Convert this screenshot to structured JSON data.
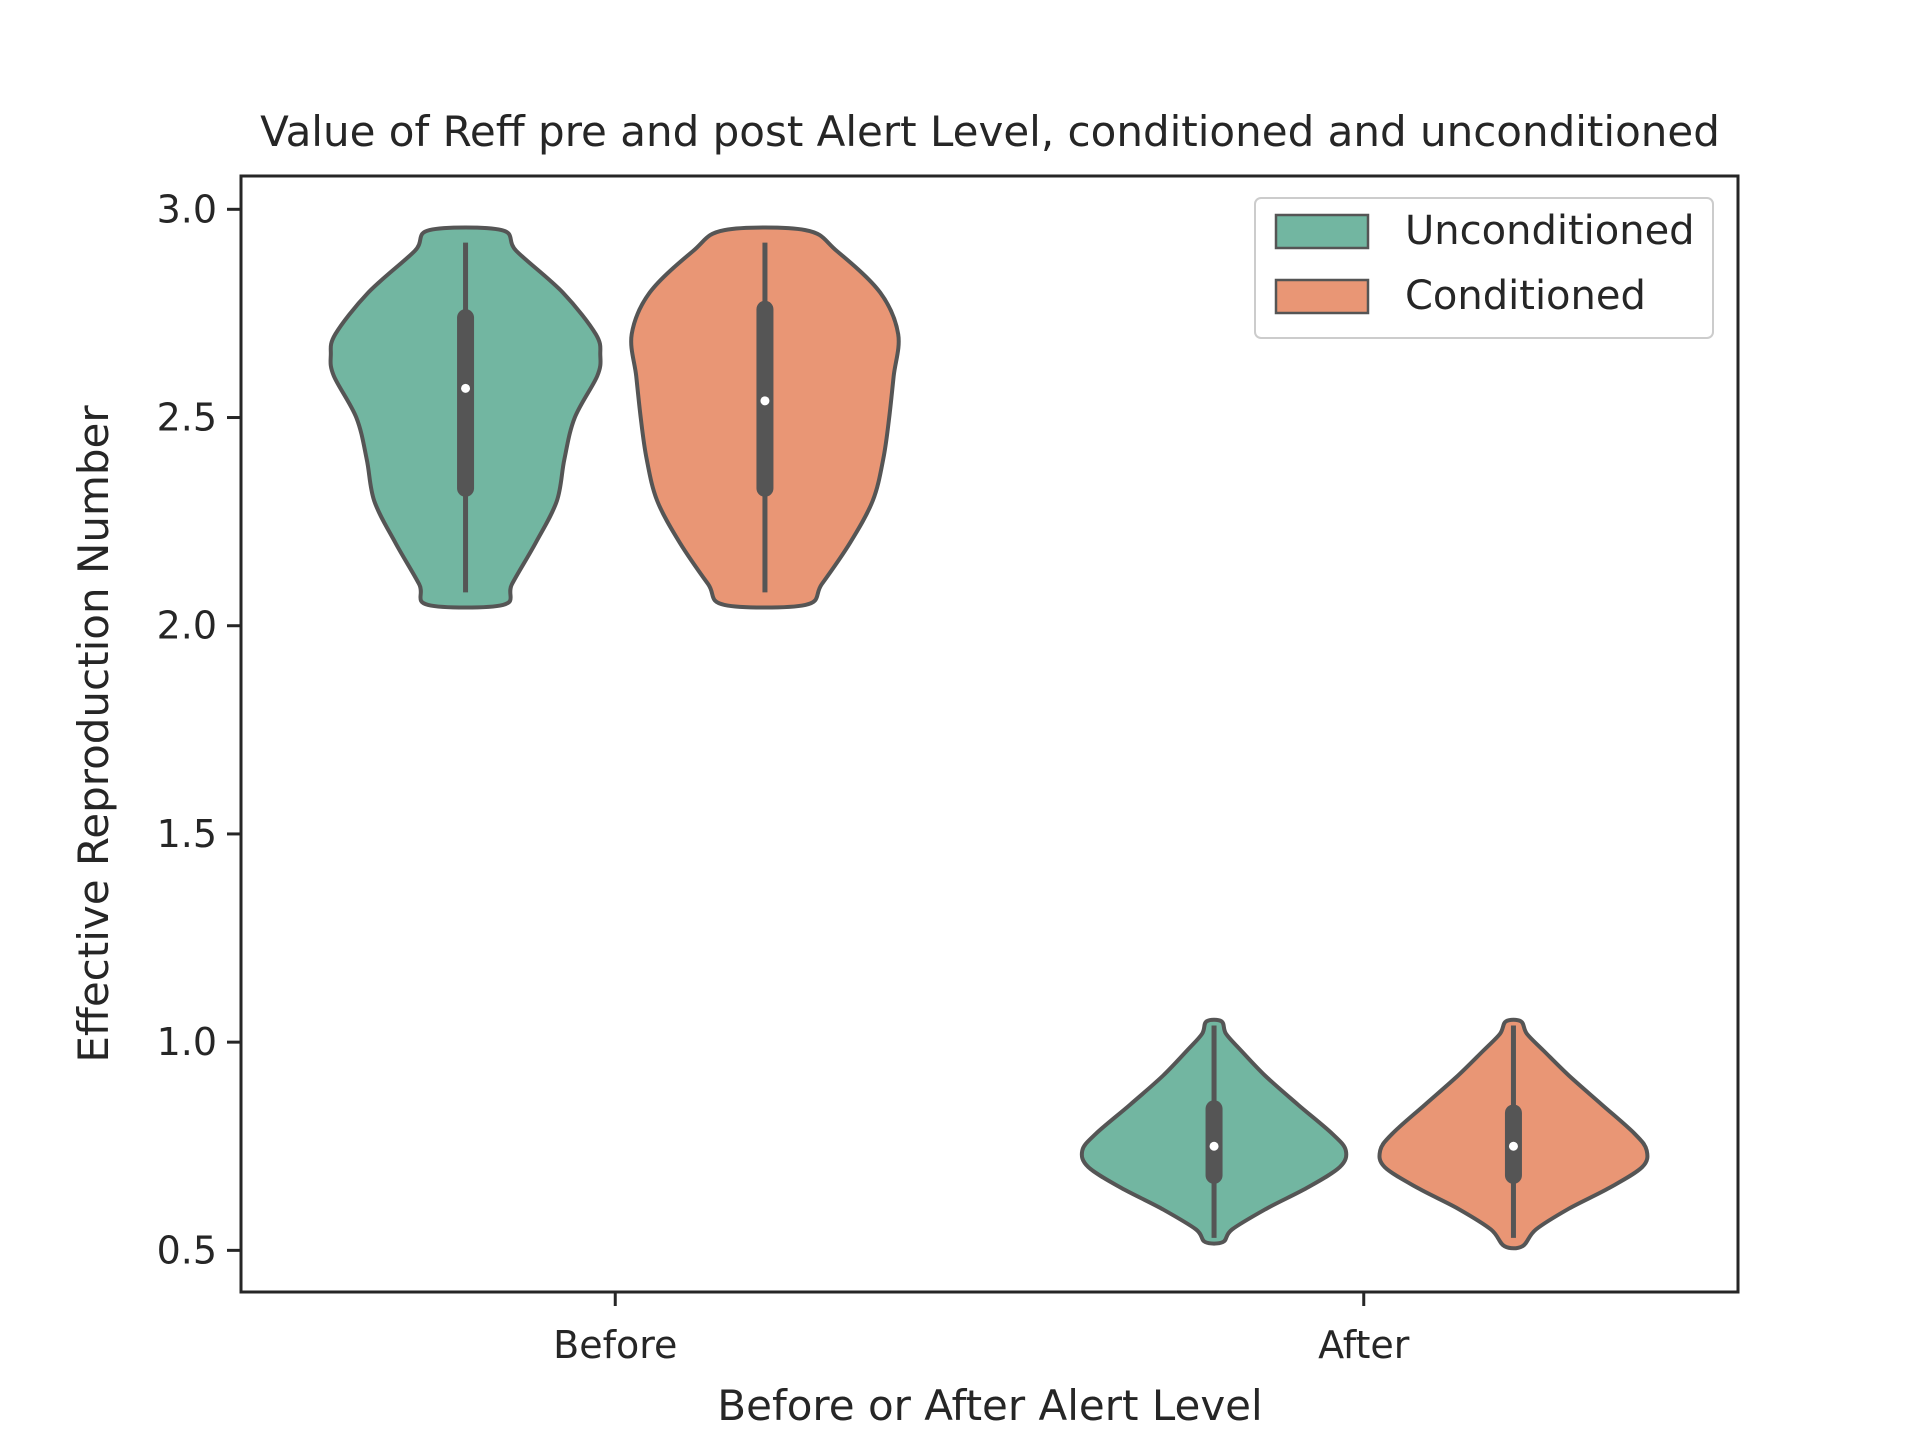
{
  "chart_data": {
    "type": "violin",
    "title": "Value of Reff pre and post Alert Level, conditioned and unconditioned",
    "xlabel": "Before or After Alert Level",
    "ylabel": "Effective Reproduction Number",
    "categories": [
      "Before",
      "After"
    ],
    "ylim": [
      0.4,
      3.08
    ],
    "yticks": [
      0.5,
      1.0,
      1.5,
      2.0,
      2.5,
      3.0
    ],
    "ytick_labels": [
      "0.5",
      "1.0",
      "1.5",
      "2.0",
      "2.5",
      "3.0"
    ],
    "grid": false,
    "legend_position": "top-right",
    "series": [
      {
        "name": "Unconditioned",
        "color": "#72b6a1",
        "violins": [
          {
            "category": "Before",
            "min": 2.05,
            "max": 2.95,
            "whisker_low": 2.08,
            "whisker_high": 2.92,
            "q1": 2.33,
            "median": 2.57,
            "q3": 2.74,
            "profile": [
              [
                2.05,
                0.25
              ],
              [
                2.1,
                0.31
              ],
              [
                2.2,
                0.47
              ],
              [
                2.3,
                0.61
              ],
              [
                2.4,
                0.66
              ],
              [
                2.5,
                0.73
              ],
              [
                2.6,
                0.88
              ],
              [
                2.65,
                0.9
              ],
              [
                2.7,
                0.87
              ],
              [
                2.8,
                0.65
              ],
              [
                2.9,
                0.34
              ],
              [
                2.95,
                0.24
              ]
            ]
          },
          {
            "category": "After",
            "min": 0.52,
            "max": 1.05,
            "whisker_low": 0.53,
            "whisker_high": 1.04,
            "q1": 0.68,
            "median": 0.75,
            "q3": 0.84,
            "profile": [
              [
                0.52,
                0.06
              ],
              [
                0.55,
                0.12
              ],
              [
                0.6,
                0.35
              ],
              [
                0.65,
                0.62
              ],
              [
                0.7,
                0.84
              ],
              [
                0.74,
                0.88
              ],
              [
                0.78,
                0.79
              ],
              [
                0.85,
                0.56
              ],
              [
                0.92,
                0.34
              ],
              [
                0.98,
                0.18
              ],
              [
                1.02,
                0.08
              ],
              [
                1.05,
                0.05
              ]
            ]
          }
        ]
      },
      {
        "name": "Conditioned",
        "color": "#e99675",
        "violins": [
          {
            "category": "Before",
            "min": 2.05,
            "max": 2.95,
            "whisker_low": 2.08,
            "whisker_high": 2.92,
            "q1": 2.33,
            "median": 2.54,
            "q3": 2.76,
            "profile": [
              [
                2.05,
                0.27
              ],
              [
                2.1,
                0.38
              ],
              [
                2.2,
                0.57
              ],
              [
                2.3,
                0.72
              ],
              [
                2.4,
                0.79
              ],
              [
                2.5,
                0.83
              ],
              [
                2.6,
                0.86
              ],
              [
                2.7,
                0.89
              ],
              [
                2.8,
                0.77
              ],
              [
                2.9,
                0.48
              ],
              [
                2.95,
                0.27
              ]
            ]
          },
          {
            "category": "After",
            "min": 0.51,
            "max": 1.05,
            "whisker_low": 0.53,
            "whisker_high": 1.04,
            "q1": 0.68,
            "median": 0.75,
            "q3": 0.83,
            "profile": [
              [
                0.51,
                0.06
              ],
              [
                0.55,
                0.15
              ],
              [
                0.6,
                0.37
              ],
              [
                0.65,
                0.64
              ],
              [
                0.7,
                0.86
              ],
              [
                0.74,
                0.89
              ],
              [
                0.78,
                0.81
              ],
              [
                0.85,
                0.59
              ],
              [
                0.92,
                0.37
              ],
              [
                0.98,
                0.2
              ],
              [
                1.02,
                0.09
              ],
              [
                1.05,
                0.05
              ]
            ]
          }
        ]
      }
    ]
  }
}
